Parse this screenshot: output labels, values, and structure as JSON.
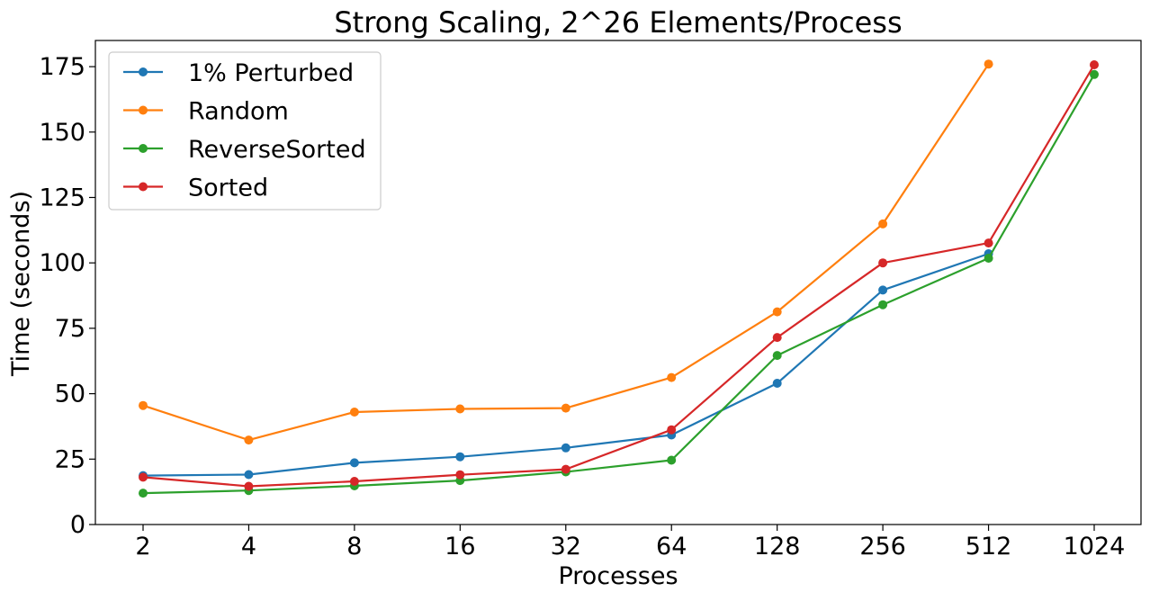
{
  "chart_data": {
    "type": "line",
    "title": "Strong Scaling, 2^26 Elements/Process",
    "xlabel": "Processes",
    "ylabel": "Time (seconds)",
    "categories": [
      "2",
      "4",
      "8",
      "16",
      "32",
      "64",
      "128",
      "256",
      "512",
      "1024"
    ],
    "ylim": [
      0,
      185
    ],
    "yticks": [
      "0",
      "25",
      "50",
      "75",
      "100",
      "125",
      "150",
      "175"
    ],
    "grid": false,
    "legend_position": "top-left",
    "series": [
      {
        "name": "1% Perturbed",
        "color": "#1f77b4",
        "values": [
          18.7,
          19.1,
          23.6,
          25.9,
          29.3,
          34.2,
          54.0,
          89.6,
          103.5,
          null
        ]
      },
      {
        "name": "Random",
        "color": "#ff7f0e",
        "values": [
          45.5,
          32.3,
          43.0,
          44.2,
          44.5,
          56.2,
          81.3,
          114.9,
          176.0,
          null
        ]
      },
      {
        "name": "ReverseSorted",
        "color": "#2ca02c",
        "values": [
          12.0,
          13.0,
          14.8,
          16.8,
          20.1,
          24.6,
          64.6,
          84.0,
          101.8,
          172.0
        ]
      },
      {
        "name": "Sorted",
        "color": "#d62728",
        "values": [
          18.1,
          14.6,
          16.5,
          19.0,
          21.1,
          36.2,
          71.5,
          100.0,
          107.6,
          175.7
        ]
      }
    ]
  }
}
